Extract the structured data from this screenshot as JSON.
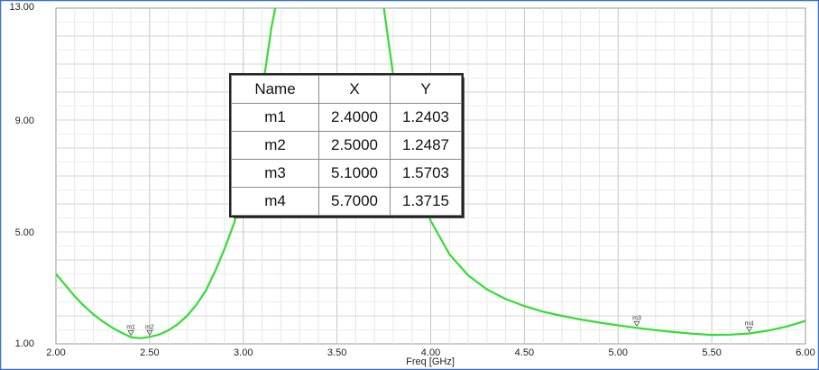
{
  "chart_data": {
    "type": "line",
    "xlabel": "Freq [GHz]",
    "ylabel": "",
    "xlim": [
      2.0,
      6.0
    ],
    "ylim": [
      1.0,
      13.0
    ],
    "grid": true,
    "x_ticks": [
      "2.00",
      "2.50",
      "3.00",
      "3.50",
      "4.00",
      "4.50",
      "5.00",
      "5.50",
      "6.00"
    ],
    "y_ticks": [
      "1.00",
      "5.00",
      "9.00",
      "13.00"
    ],
    "series": [
      {
        "color": "#33dd33",
        "points": [
          [
            2.0,
            3.5
          ],
          [
            2.05,
            3.1
          ],
          [
            2.1,
            2.7
          ],
          [
            2.15,
            2.35
          ],
          [
            2.2,
            2.05
          ],
          [
            2.25,
            1.8
          ],
          [
            2.3,
            1.58
          ],
          [
            2.35,
            1.4
          ],
          [
            2.4,
            1.24
          ],
          [
            2.45,
            1.2
          ],
          [
            2.5,
            1.25
          ],
          [
            2.55,
            1.33
          ],
          [
            2.6,
            1.48
          ],
          [
            2.65,
            1.7
          ],
          [
            2.7,
            2.0
          ],
          [
            2.75,
            2.4
          ],
          [
            2.8,
            2.9
          ],
          [
            2.85,
            3.6
          ],
          [
            2.9,
            4.4
          ],
          [
            2.95,
            5.3
          ],
          [
            3.0,
            6.5
          ],
          [
            3.05,
            8.0
          ],
          [
            3.1,
            10.0
          ],
          [
            3.15,
            12.3
          ],
          [
            3.17,
            13.0
          ]
        ]
      },
      {
        "color": "#33dd33",
        "points": [
          [
            3.75,
            13.0
          ],
          [
            3.8,
            10.6
          ],
          [
            3.85,
            8.8
          ],
          [
            3.9,
            7.4
          ],
          [
            3.95,
            6.3
          ],
          [
            4.0,
            5.4
          ],
          [
            4.1,
            4.2
          ],
          [
            4.2,
            3.45
          ],
          [
            4.3,
            2.95
          ],
          [
            4.4,
            2.6
          ],
          [
            4.5,
            2.35
          ],
          [
            4.6,
            2.15
          ],
          [
            4.7,
            2.0
          ],
          [
            4.8,
            1.87
          ],
          [
            4.9,
            1.76
          ],
          [
            5.0,
            1.66
          ],
          [
            5.1,
            1.57
          ],
          [
            5.2,
            1.49
          ],
          [
            5.3,
            1.42
          ],
          [
            5.4,
            1.36
          ],
          [
            5.5,
            1.32
          ],
          [
            5.6,
            1.33
          ],
          [
            5.7,
            1.37
          ],
          [
            5.8,
            1.47
          ],
          [
            5.9,
            1.62
          ],
          [
            6.0,
            1.82
          ]
        ]
      }
    ],
    "markers": [
      {
        "name": "m1",
        "x": "2.4000",
        "y": "1.2403",
        "xv": 2.4,
        "yv": 1.2403
      },
      {
        "name": "m2",
        "x": "2.5000",
        "y": "1.2487",
        "xv": 2.5,
        "yv": 1.2487
      },
      {
        "name": "m3",
        "x": "5.1000",
        "y": "1.5703",
        "xv": 5.1,
        "yv": 1.5703
      },
      {
        "name": "m4",
        "x": "5.7000",
        "y": "1.3715",
        "xv": 5.7,
        "yv": 1.3715
      }
    ],
    "table": {
      "headers": [
        "Name",
        "X",
        "Y"
      ]
    }
  }
}
